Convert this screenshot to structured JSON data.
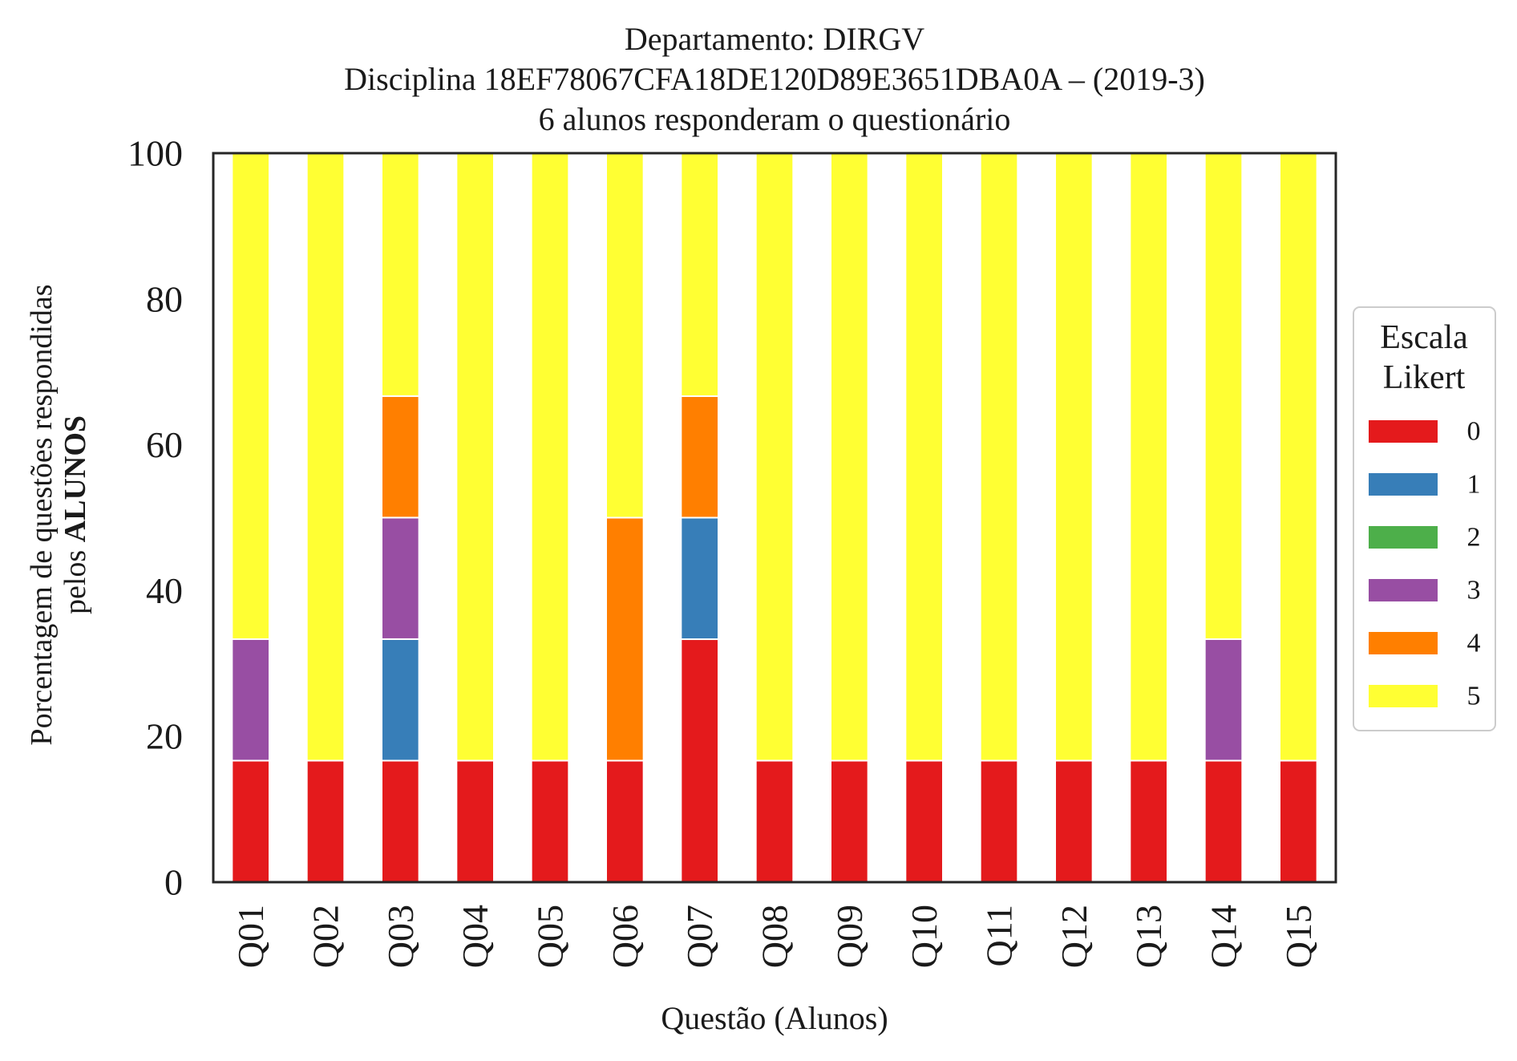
{
  "chart_data": {
    "type": "bar",
    "stacked": true,
    "title": [
      "Departamento: DIRGV",
      "Disciplina 18EF78067CFA18DE120D89E3651DBA0A – (2019-3)",
      "6 alunos responderam o questionário"
    ],
    "xlabel": "Questão (Alunos)",
    "ylabel_line1": "Porcentagem de questões respondidas",
    "ylabel_line2_prefix": "pelos ",
    "ylabel_line2_bold": "ALUNOS",
    "ylim": [
      0,
      100
    ],
    "yticks": [
      "0",
      "20",
      "40",
      "60",
      "80",
      "100"
    ],
    "grid": false,
    "legend_position": "center-right",
    "legend_title": [
      "Escala",
      "Likert"
    ],
    "categories": [
      "Q01",
      "Q02",
      "Q03",
      "Q04",
      "Q05",
      "Q06",
      "Q07",
      "Q08",
      "Q09",
      "Q10",
      "Q11",
      "Q12",
      "Q13",
      "Q14",
      "Q15"
    ],
    "series": [
      {
        "name": "0",
        "color": "#e41a1c",
        "values": [
          16.67,
          16.67,
          16.67,
          16.67,
          16.67,
          16.67,
          33.33,
          16.67,
          16.67,
          16.67,
          16.67,
          16.67,
          16.67,
          16.67,
          16.67
        ]
      },
      {
        "name": "1",
        "color": "#377eb8",
        "values": [
          0,
          0,
          16.67,
          0,
          0,
          0,
          16.67,
          0,
          0,
          0,
          0,
          0,
          0,
          0,
          0
        ]
      },
      {
        "name": "2",
        "color": "#4daf4a",
        "values": [
          0,
          0,
          0,
          0,
          0,
          0,
          0,
          0,
          0,
          0,
          0,
          0,
          0,
          0,
          0
        ]
      },
      {
        "name": "3",
        "color": "#984ea3",
        "values": [
          16.67,
          0,
          16.67,
          0,
          0,
          0,
          0,
          0,
          0,
          0,
          0,
          0,
          0,
          16.67,
          0
        ]
      },
      {
        "name": "4",
        "color": "#ff7f00",
        "values": [
          0,
          0,
          16.67,
          0,
          0,
          33.33,
          16.67,
          0,
          0,
          0,
          0,
          0,
          0,
          0,
          0
        ]
      },
      {
        "name": "5",
        "color": "#ffff33",
        "values": [
          66.67,
          83.33,
          33.33,
          83.33,
          83.33,
          50,
          33.33,
          83.33,
          83.33,
          83.33,
          83.33,
          83.33,
          83.33,
          66.67,
          83.33
        ]
      }
    ]
  }
}
